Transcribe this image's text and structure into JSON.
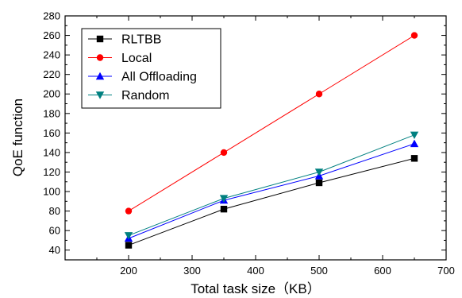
{
  "chart_data": {
    "type": "line",
    "xlabel": "Total task size（KB）",
    "ylabel": "QoE function",
    "xlim": [
      100,
      700
    ],
    "ylim": [
      30,
      280
    ],
    "x_ticks": [
      200,
      300,
      400,
      500,
      600,
      700
    ],
    "y_ticks": [
      40,
      60,
      80,
      100,
      120,
      140,
      160,
      180,
      200,
      220,
      240,
      260,
      280
    ],
    "grid": false,
    "legend_position": "top-left",
    "x": [
      200,
      350,
      500,
      650
    ],
    "series": [
      {
        "name": "RLTBB",
        "values": [
          45,
          82,
          109,
          134
        ],
        "color": "#000000",
        "marker": "square"
      },
      {
        "name": "Local",
        "values": [
          80,
          140,
          200,
          260
        ],
        "color": "#ff0000",
        "marker": "circle"
      },
      {
        "name": "All Offloading",
        "values": [
          52,
          91,
          116,
          149
        ],
        "color": "#0000ff",
        "marker": "triangle-up"
      },
      {
        "name": "Random",
        "values": [
          55,
          93,
          120,
          158
        ],
        "color": "#008080",
        "marker": "triangle-down"
      }
    ]
  }
}
